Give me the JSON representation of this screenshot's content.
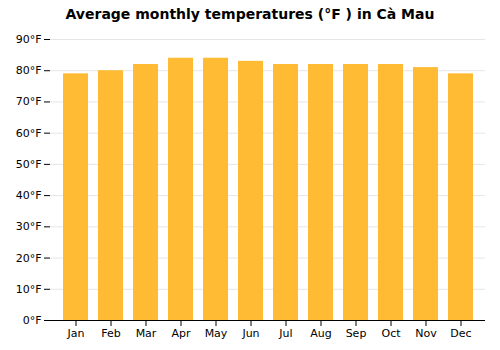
{
  "chart_data": {
    "type": "bar",
    "title": "Average monthly temperatures (°F ) in Cà  Mau",
    "categories": [
      "Jan",
      "Feb",
      "Mar",
      "Apr",
      "May",
      "Jun",
      "Jul",
      "Aug",
      "Sep",
      "Oct",
      "Nov",
      "Dec"
    ],
    "values": [
      79,
      80,
      82,
      84,
      84,
      83,
      82,
      82,
      82,
      82,
      81,
      79
    ],
    "color": "#FFBB33",
    "ylim": [
      0,
      90
    ],
    "yticks": [
      {
        "value": 0,
        "label": "0°F"
      },
      {
        "value": 10,
        "label": "10°F"
      },
      {
        "value": 20,
        "label": "20°F"
      },
      {
        "value": 30,
        "label": "30°F"
      },
      {
        "value": 40,
        "label": "40°F"
      },
      {
        "value": 50,
        "label": "50°F"
      },
      {
        "value": 60,
        "label": "60°F"
      },
      {
        "value": 70,
        "label": "70°F"
      },
      {
        "value": 80,
        "label": "80°F"
      },
      {
        "value": 90,
        "label": "90°F"
      }
    ],
    "grid": true
  }
}
